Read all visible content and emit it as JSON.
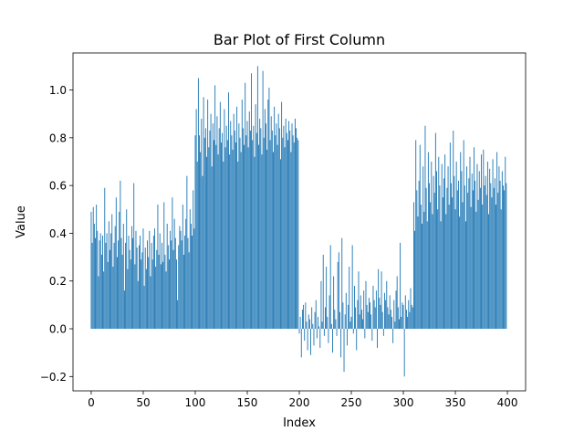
{
  "chart_data": {
    "type": "bar",
    "title": "Bar Plot of First Column",
    "xlabel": "Index",
    "ylabel": "Value",
    "xlim": [
      -17.5,
      417.5
    ],
    "ylim": [
      -0.26,
      1.155
    ],
    "xticks": [
      0,
      50,
      100,
      150,
      200,
      250,
      300,
      350,
      400
    ],
    "yticks": [
      -0.2,
      0.0,
      0.2,
      0.4,
      0.6,
      0.8,
      1.0
    ],
    "ytick_labels": [
      "−0.2",
      "0.0",
      "0.2",
      "0.4",
      "0.6",
      "0.8",
      "1.0"
    ],
    "grid": false,
    "bar_color": "#1f77b4",
    "x_start": 0,
    "values": [
      0.49,
      0.36,
      0.51,
      0.44,
      0.38,
      0.52,
      0.41,
      0.22,
      0.37,
      0.4,
      0.31,
      0.39,
      0.24,
      0.59,
      0.36,
      0.4,
      0.28,
      0.45,
      0.33,
      0.4,
      0.48,
      0.26,
      0.36,
      0.43,
      0.55,
      0.3,
      0.37,
      0.49,
      0.62,
      0.38,
      0.31,
      0.44,
      0.16,
      0.36,
      0.5,
      0.25,
      0.39,
      0.33,
      0.29,
      0.43,
      0.38,
      0.61,
      0.27,
      0.41,
      0.34,
      0.2,
      0.35,
      0.39,
      0.29,
      0.32,
      0.42,
      0.18,
      0.34,
      0.25,
      0.37,
      0.3,
      0.41,
      0.22,
      0.36,
      0.29,
      0.39,
      0.42,
      0.26,
      0.33,
      0.52,
      0.31,
      0.4,
      0.27,
      0.36,
      0.28,
      0.53,
      0.31,
      0.24,
      0.44,
      0.35,
      0.29,
      0.41,
      0.37,
      0.55,
      0.33,
      0.46,
      0.38,
      0.29,
      0.12,
      0.35,
      0.43,
      0.41,
      0.37,
      0.52,
      0.31,
      0.39,
      0.46,
      0.64,
      0.38,
      0.32,
      0.5,
      0.44,
      0.39,
      0.58,
      0.42,
      0.81,
      0.92,
      0.7,
      1.05,
      0.81,
      0.74,
      0.88,
      0.64,
      0.97,
      0.8,
      0.84,
      0.72,
      0.96,
      0.76,
      0.83,
      0.9,
      0.68,
      0.86,
      0.79,
      1.02,
      0.77,
      0.89,
      0.73,
      0.84,
      0.95,
      0.78,
      0.82,
      0.7,
      0.92,
      0.76,
      0.85,
      0.79,
      0.99,
      0.73,
      0.87,
      0.81,
      0.75,
      0.9,
      0.83,
      0.78,
      0.93,
      0.7,
      0.86,
      0.8,
      0.74,
      0.96,
      0.84,
      0.77,
      1.03,
      0.81,
      0.87,
      0.76,
      0.91,
      0.83,
      1.07,
      0.79,
      0.85,
      0.72,
      0.94,
      0.82,
      1.1,
      0.77,
      0.88,
      0.84,
      0.73,
      1.08,
      0.8,
      0.92,
      0.86,
      0.75,
      0.96,
      1.01,
      0.79,
      0.89,
      0.83,
      0.74,
      0.93,
      0.81,
      0.86,
      0.77,
      0.9,
      0.84,
      0.71,
      0.95,
      0.8,
      0.85,
      0.76,
      0.88,
      0.82,
      0.79,
      0.87,
      0.83,
      0.74,
      0.86,
      0.81,
      0.78,
      0.88,
      0.84,
      0.8,
      0.79,
      -0.02,
      0.05,
      -0.12,
      0.08,
      0.1,
      -0.05,
      0.11,
      0.03,
      -0.09,
      0.06,
      0.04,
      -0.11,
      0.09,
      0.02,
      -0.07,
      0.07,
      0.12,
      -0.04,
      0.05,
      0.01,
      -0.08,
      0.2,
      0.03,
      0.31,
      -0.03,
      0.09,
      0.26,
      0.05,
      -0.06,
      0.14,
      0.35,
      0.02,
      -0.1,
      0.22,
      0.08,
      0.04,
      -0.03,
      0.28,
      0.32,
      0.07,
      -0.12,
      0.38,
      0.11,
      -0.18,
      0.06,
      0.15,
      -0.07,
      0.1,
      0.26,
      0.03,
      0.05,
      0.35,
      -0.02,
      0.18,
      0.09,
      -0.09,
      0.12,
      0.24,
      0.06,
      0.14,
      0.08,
      0.04,
      0.16,
      -0.04,
      0.2,
      0.1,
      0.07,
      0.13,
      0.11,
      0.06,
      -0.05,
      0.18,
      0.12,
      0.09,
      0.16,
      -0.08,
      0.25,
      0.13,
      0.1,
      0.24,
      0.07,
      -0.03,
      0.15,
      0.12,
      0.2,
      0.09,
      0.06,
      0.14,
      0.08,
      0.05,
      -0.06,
      0.12,
      0.03,
      0.16,
      0.22,
      0.09,
      0.04,
      0.36,
      0.05,
      0.11,
      0.1,
      -0.2,
      0.14,
      0.08,
      0.05,
      0.12,
      0.07,
      0.17,
      0.1,
      0.09,
      0.53,
      0.41,
      0.79,
      0.58,
      0.47,
      0.62,
      0.77,
      0.52,
      0.44,
      0.68,
      0.49,
      0.85,
      0.59,
      0.45,
      0.74,
      0.61,
      0.53,
      0.7,
      0.48,
      0.64,
      0.57,
      0.82,
      0.66,
      0.5,
      0.72,
      0.6,
      0.45,
      0.69,
      0.55,
      0.63,
      0.73,
      0.48,
      0.59,
      0.68,
      0.52,
      0.78,
      0.61,
      0.55,
      0.83,
      0.64,
      0.5,
      0.7,
      0.58,
      0.62,
      0.47,
      0.74,
      0.66,
      0.53,
      0.79,
      0.6,
      0.45,
      0.68,
      0.57,
      0.63,
      0.72,
      0.51,
      0.65,
      0.58,
      0.76,
      0.62,
      0.49,
      0.69,
      0.54,
      0.66,
      0.59,
      0.73,
      0.52,
      0.75,
      0.6,
      0.64,
      0.56,
      0.7,
      0.48,
      0.67,
      0.61,
      0.55,
      0.71,
      0.59,
      0.63,
      0.52,
      0.74,
      0.57,
      0.68,
      0.62,
      0.5,
      0.66,
      0.6,
      0.58,
      0.72,
      0.61
    ]
  }
}
